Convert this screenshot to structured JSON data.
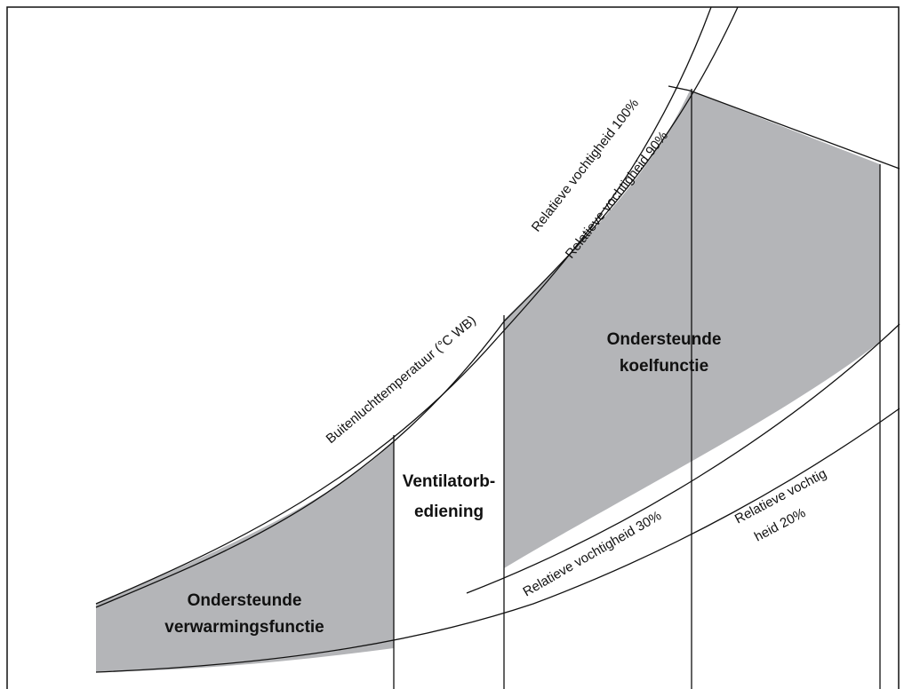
{
  "curves": {
    "rh100": "Relatieve vochtigheid 100%",
    "rh90": "Relatieve vochtigheid 90%",
    "rh30": "Relatieve vochtigheid 30%",
    "rh20": [
      "Relatieve vochtig",
      "heid 20%"
    ],
    "temperature": "Buitenluchttemperatuur (°C WB)"
  },
  "zones": {
    "cooling": [
      "Ondersteunde",
      "koelfunctie"
    ],
    "fan": [
      "Ventilatorb-",
      "ediening"
    ],
    "heating": [
      "Ondersteunde",
      "verwarmingsfunctie"
    ]
  }
}
